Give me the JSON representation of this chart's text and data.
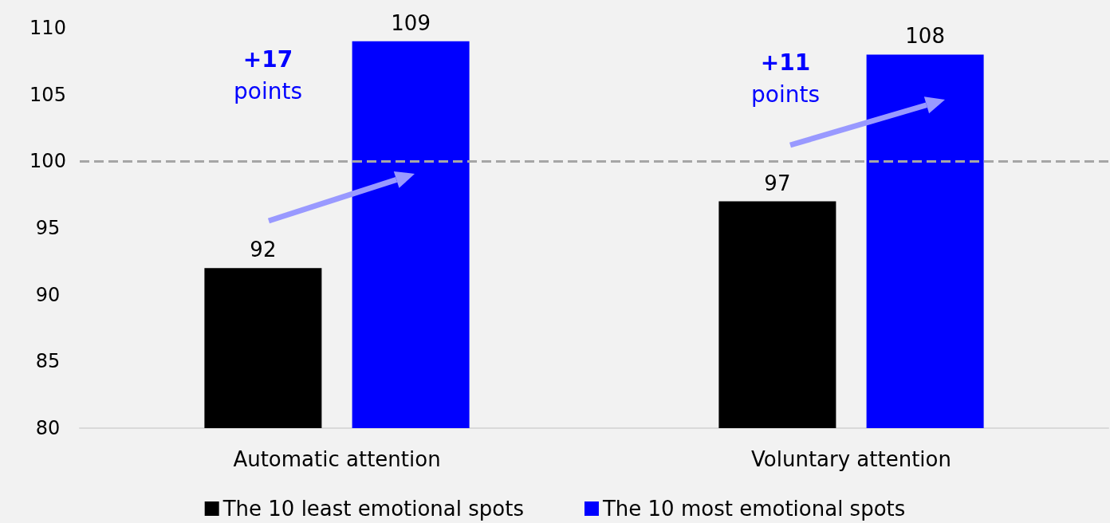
{
  "chart_data": {
    "type": "bar",
    "categories": [
      "Automatic attention",
      "Voluntary attention"
    ],
    "series": [
      {
        "name": "The 10 least emotional spots",
        "color": "#000000",
        "values": [
          92,
          97
        ]
      },
      {
        "name": "The 10 most emotional spots",
        "color": "#0000ff",
        "values": [
          109,
          108
        ]
      }
    ],
    "ylim": [
      80,
      110
    ],
    "yticks": [
      80,
      85,
      90,
      95,
      100,
      105,
      110
    ],
    "ref_lines": [
      {
        "axis": "y",
        "value": 100,
        "color": "#a6a6a6",
        "line_style": "dashed"
      }
    ],
    "annotations": [
      "+17 points",
      "+11 points"
    ],
    "data_labels": true,
    "legend": "bottom"
  }
}
